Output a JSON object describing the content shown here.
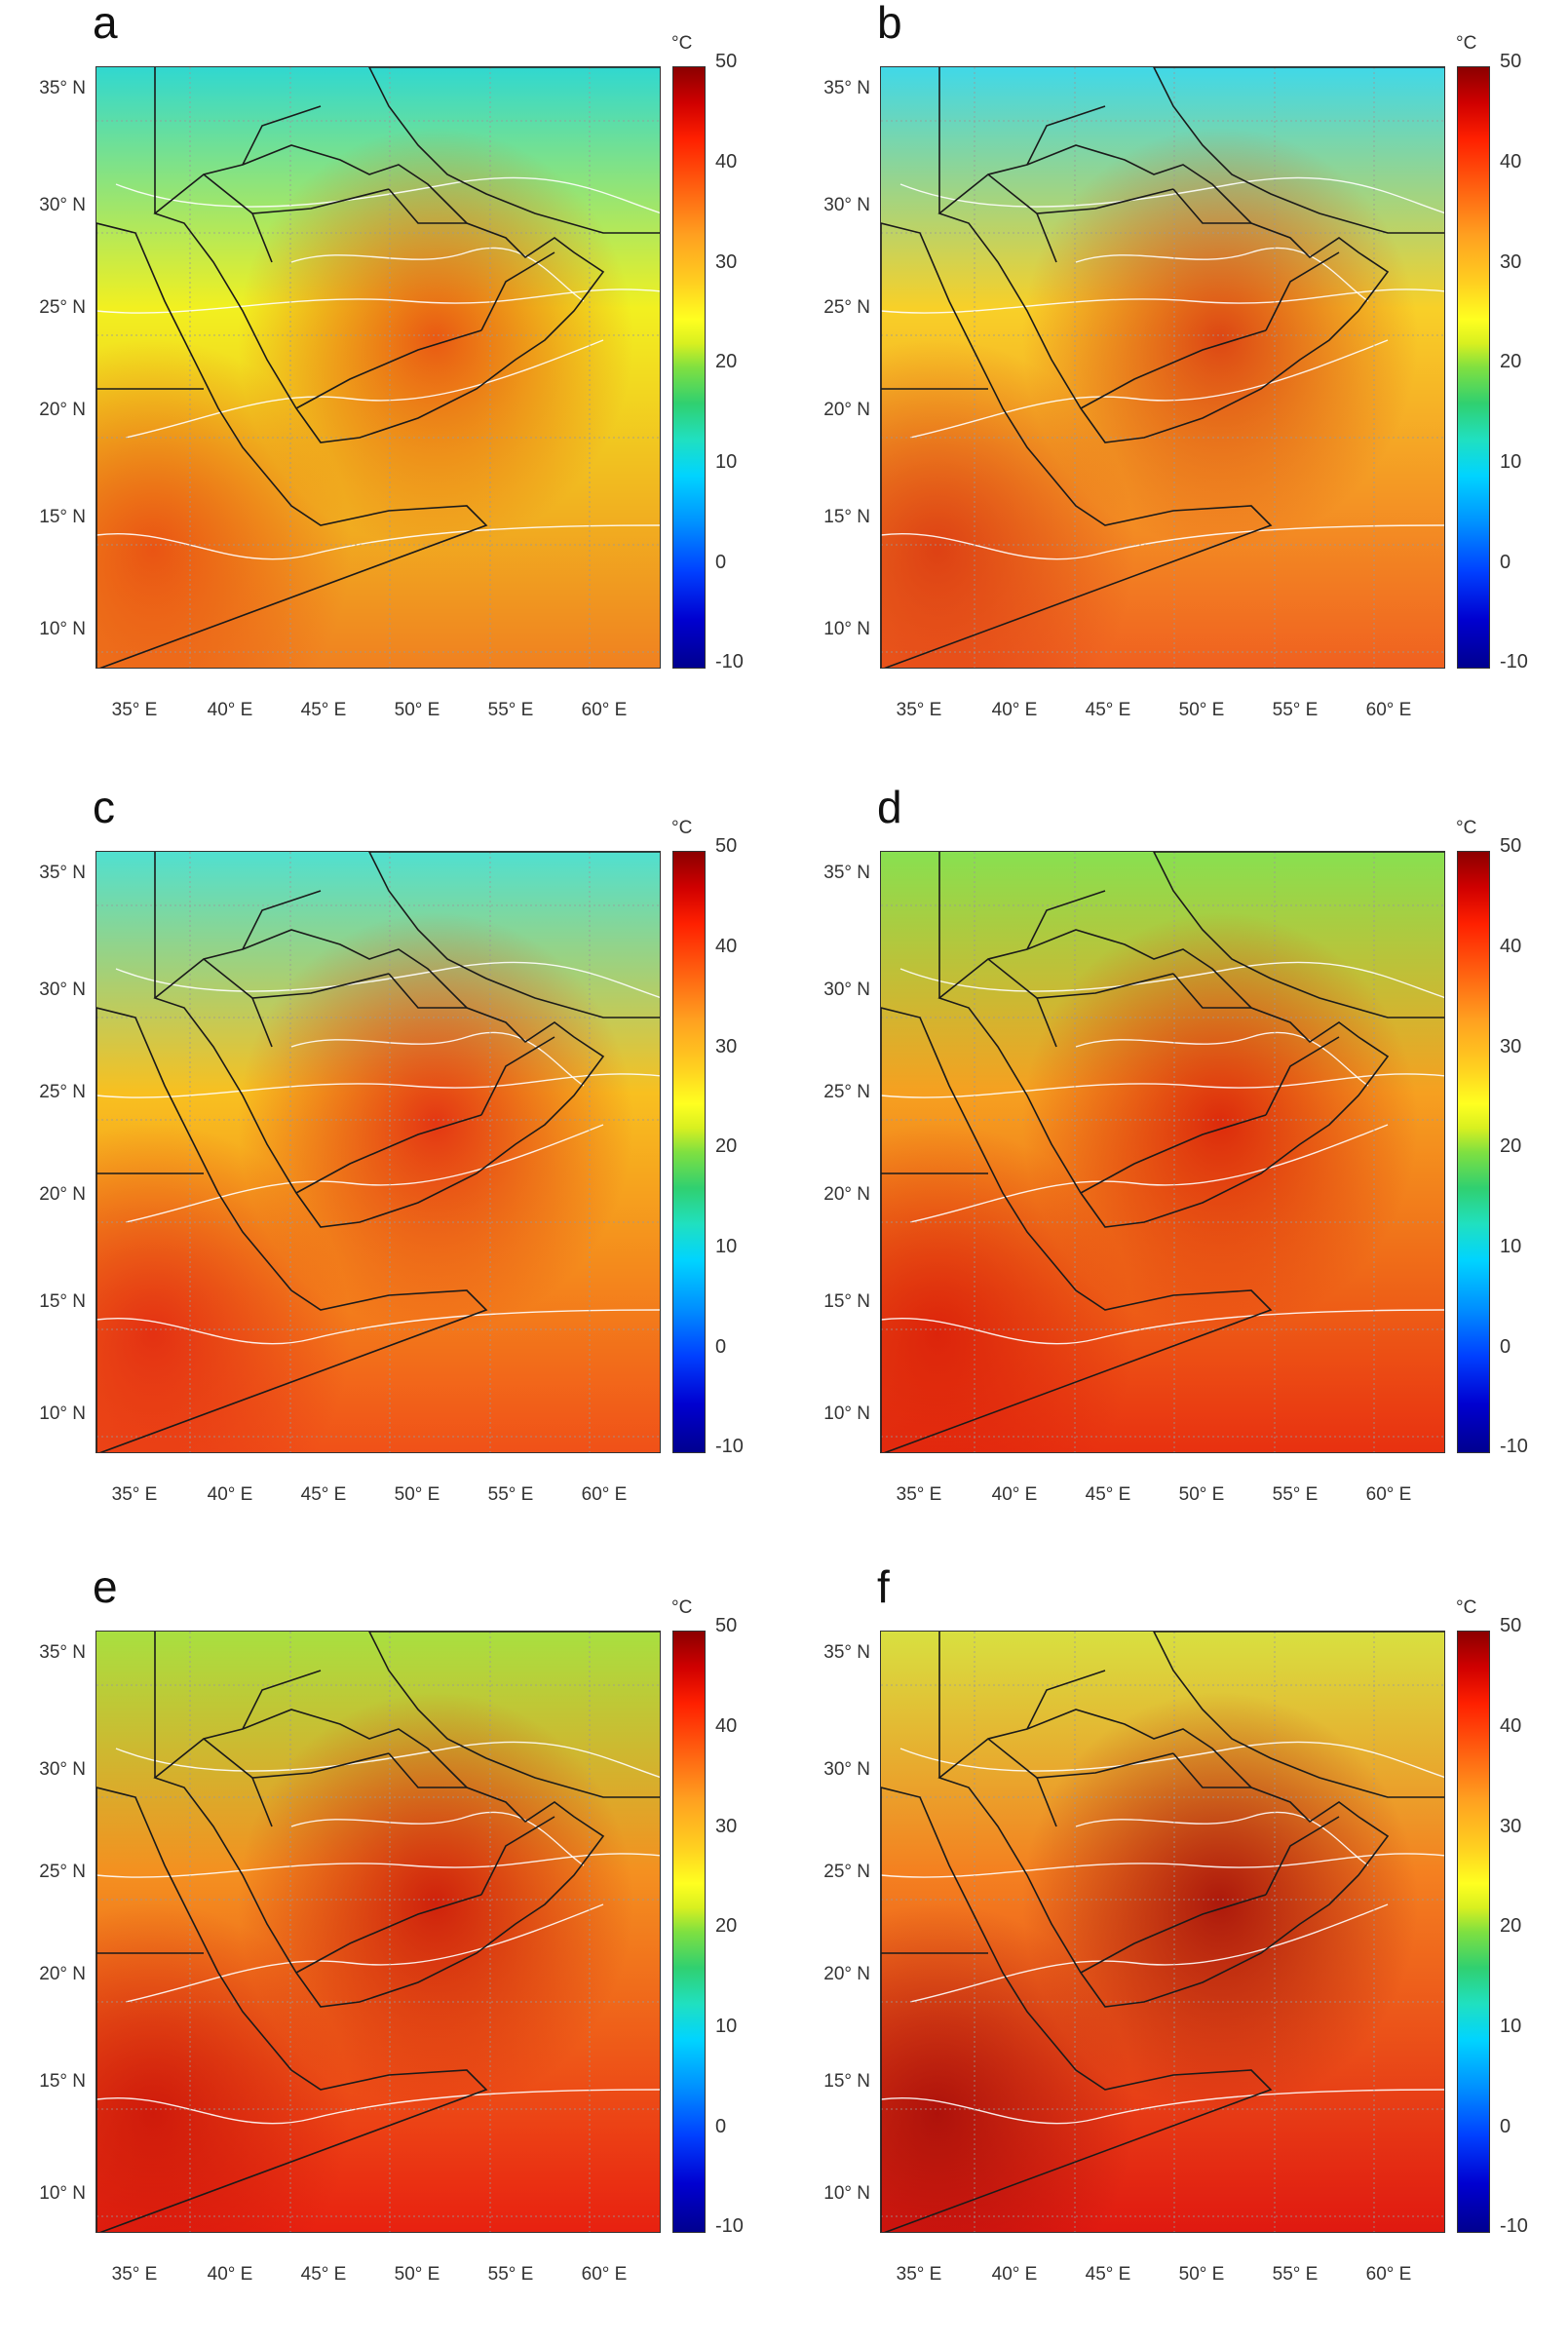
{
  "panels": [
    {
      "letter": "a",
      "base": "#f2f020",
      "north": "#30d8d0",
      "south": "#f08020",
      "hot": "#e84010"
    },
    {
      "letter": "b",
      "base": "#f8d028",
      "north": "#40d8e8",
      "south": "#f06020",
      "hot": "#d83010"
    },
    {
      "letter": "c",
      "base": "#f8c020",
      "north": "#50e0d0",
      "south": "#f05018",
      "hot": "#e02010"
    },
    {
      "letter": "d",
      "base": "#f6a020",
      "north": "#88e050",
      "south": "#e83010",
      "hot": "#d81808"
    },
    {
      "letter": "e",
      "base": "#f49020",
      "north": "#a8e040",
      "south": "#e82010",
      "hot": "#c81008"
    },
    {
      "letter": "f",
      "base": "#f48020",
      "north": "#d8e040",
      "south": "#e01810",
      "hot": "#a00808"
    }
  ],
  "lat_labels": [
    "35° N",
    "30° N",
    "25° N",
    "20° N",
    "15° N",
    "10° N"
  ],
  "lon_labels": [
    "35° E",
    "40° E",
    "45° E",
    "50° E",
    "55° E",
    "60° E"
  ],
  "colorbar": {
    "unit": "°C",
    "ticks": [
      "50",
      "40",
      "30",
      "20",
      "10",
      "0",
      "-10"
    ],
    "range": [
      -10,
      50
    ]
  }
}
